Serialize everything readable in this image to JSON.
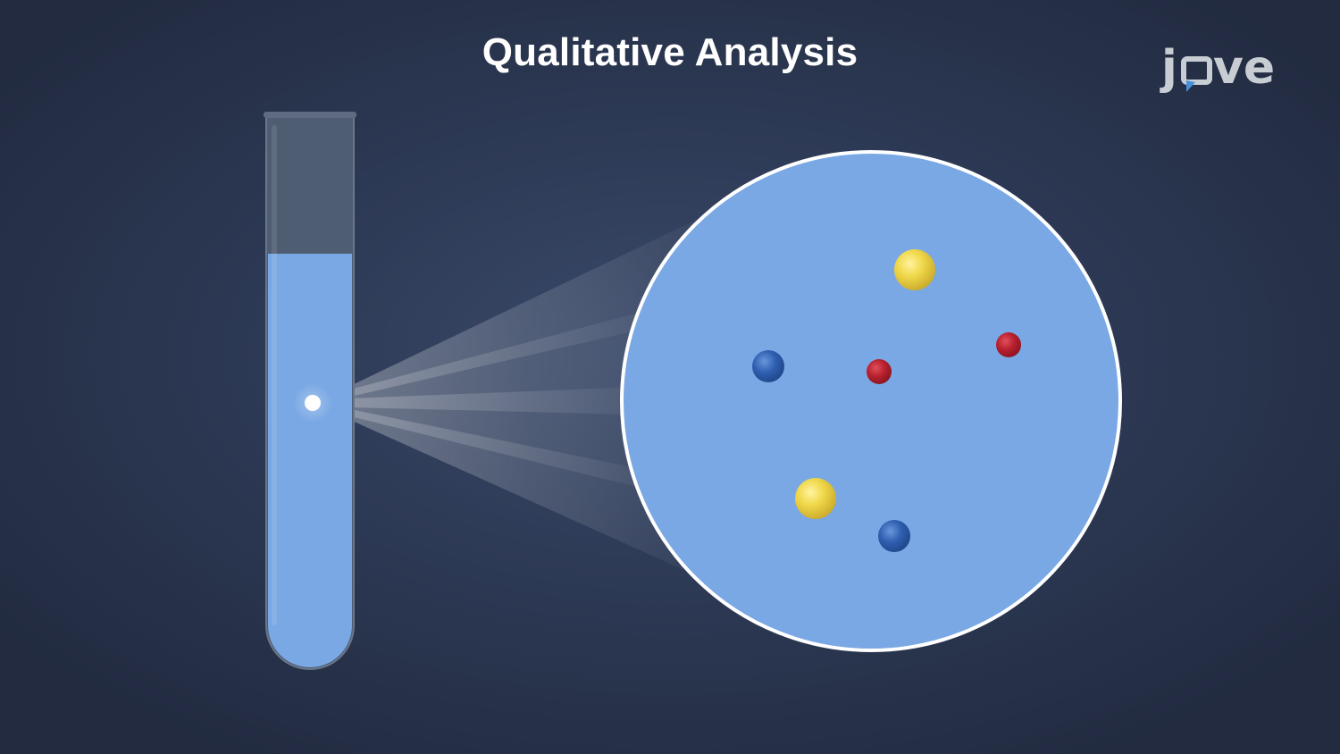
{
  "title": "Qualitative Analysis",
  "logo": {
    "text_j": "j",
    "text_ve": "ve"
  },
  "colors": {
    "background": "#2e3b57",
    "solution": "#7aa8e4",
    "tube_glass": "#4f5d72",
    "circle_border": "#ffffff",
    "particle_yellow": "#f0d84a",
    "particle_red": "#b8202e",
    "particle_blue": "#2f5fb0",
    "logo": "#c8ccd3",
    "logo_accent": "#4a90d9"
  },
  "particles": [
    "yellow",
    "blue",
    "red",
    "red",
    "yellow",
    "blue"
  ]
}
